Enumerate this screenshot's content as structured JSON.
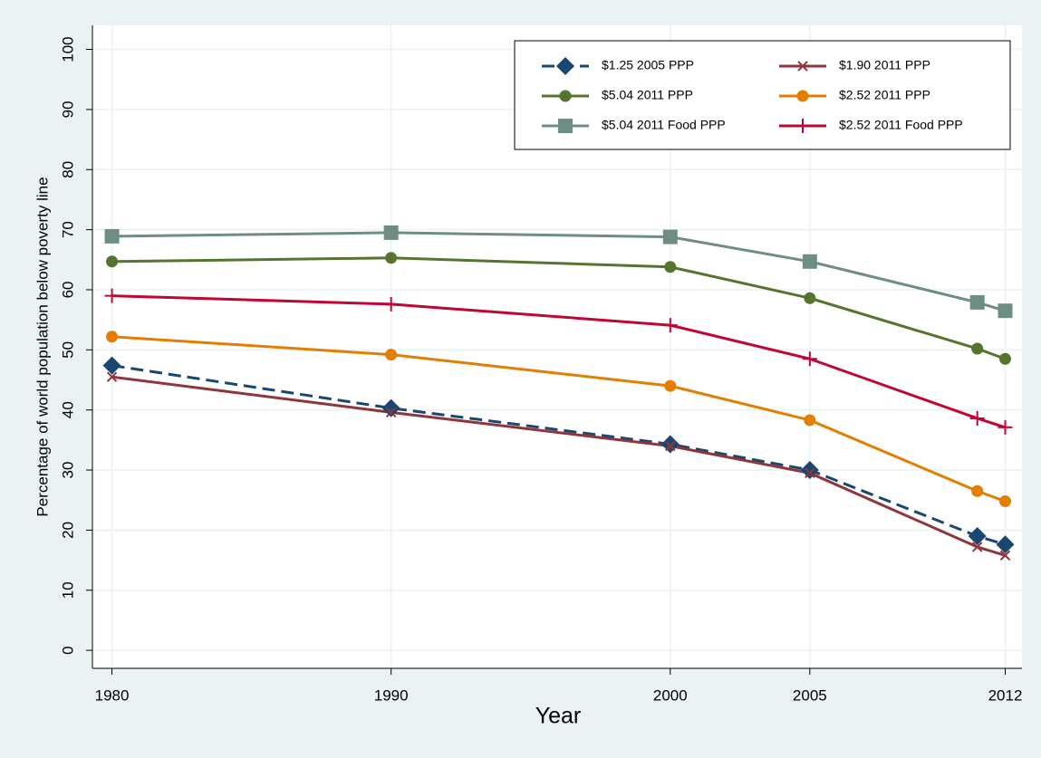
{
  "chart_data": {
    "type": "line",
    "x_label": "Year",
    "y_label": "Percentage of world population below poverty line",
    "x": [
      1980,
      1990,
      2000,
      2005,
      2011,
      2012
    ],
    "xlim": [
      1979.3,
      2012.6
    ],
    "xticks": [
      1980,
      1990,
      2000,
      2005,
      2012
    ],
    "ylim": [
      -3,
      104
    ],
    "yticks": [
      0,
      10,
      20,
      30,
      40,
      50,
      60,
      70,
      80,
      90,
      100
    ],
    "grid": true,
    "legend": "upper right",
    "series": [
      {
        "name": "$1.25 2005 PPP",
        "color": "#1a476f",
        "marker": "diamond",
        "dash": true,
        "values": [
          47.4,
          40.3,
          34.3,
          30.0,
          19.0,
          17.6
        ]
      },
      {
        "name": "$1.90 2011 PPP",
        "color": "#90353b",
        "marker": "x",
        "dash": false,
        "values": [
          45.5,
          39.6,
          34.0,
          29.5,
          17.2,
          15.8
        ]
      },
      {
        "name": "$5.04 2011 PPP",
        "color": "#55752f",
        "marker": "circle",
        "dash": false,
        "values": [
          64.7,
          65.3,
          63.8,
          58.6,
          50.2,
          48.5
        ]
      },
      {
        "name": "$2.52 2011 PPP",
        "color": "#e37e00",
        "marker": "circle",
        "dash": false,
        "values": [
          52.2,
          49.2,
          44.0,
          38.3,
          26.5,
          24.8
        ]
      },
      {
        "name": "$5.04 2011 Food PPP",
        "color": "#6e8e84",
        "marker": "square",
        "dash": false,
        "values": [
          68.9,
          69.5,
          68.8,
          64.7,
          57.9,
          56.5
        ]
      },
      {
        "name": "$2.52 2011 Food PPP",
        "color": "#c10534",
        "marker": "plus",
        "dash": false,
        "values": [
          59.0,
          57.6,
          54.1,
          48.5,
          38.6,
          37.1
        ]
      }
    ]
  }
}
